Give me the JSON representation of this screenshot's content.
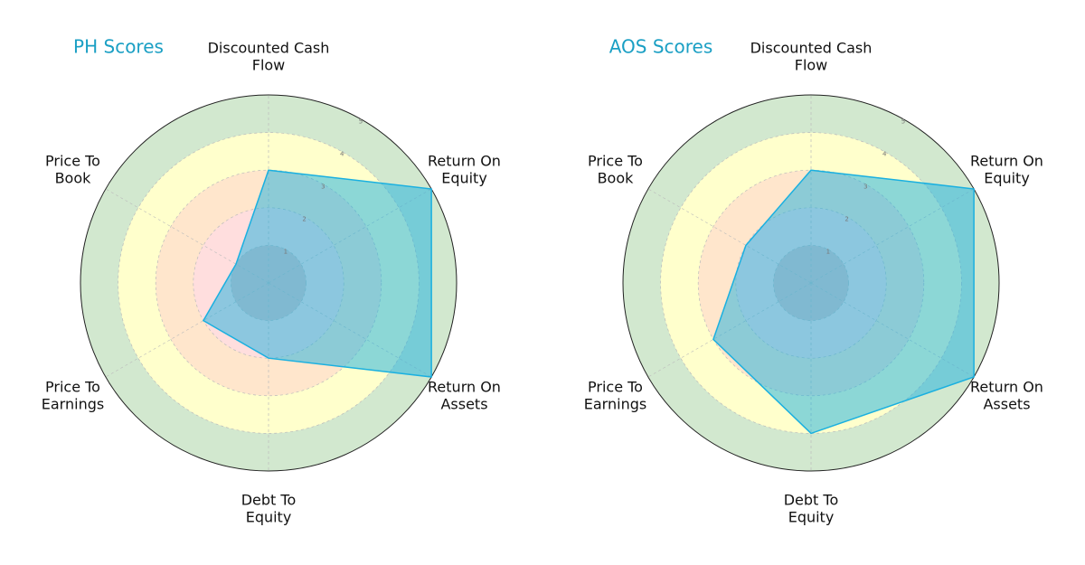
{
  "chart_data": [
    {
      "type": "radar",
      "title": "PH Scores",
      "categories": [
        "Discounted Cash Flow",
        "Return On Equity",
        "Return On Assets",
        "Debt To Equity",
        "Price To Earnings",
        "Price To Book"
      ],
      "values": [
        3,
        5,
        5,
        2,
        2,
        1
      ],
      "color": "#1ab0e0",
      "ylim": [
        0,
        5
      ],
      "yticks": [
        1,
        2,
        3,
        4,
        5
      ],
      "band_colors": [
        "#e6c3c3",
        "#ffdede",
        "#ffe6cc",
        "#ffffcc",
        "#d2e8cf"
      ],
      "grid": true
    },
    {
      "type": "radar",
      "title": "AOS Scores",
      "categories": [
        "Discounted Cash Flow",
        "Return On Equity",
        "Return On Assets",
        "Debt To Equity",
        "Price To Earnings",
        "Price To Book"
      ],
      "values": [
        3,
        5,
        5,
        4,
        3,
        2
      ],
      "color": "#1ab0e0",
      "ylim": [
        0,
        5
      ],
      "yticks": [
        1,
        2,
        3,
        4,
        5
      ],
      "band_colors": [
        "#e6c3c3",
        "#ffdede",
        "#ffe6cc",
        "#ffffcc",
        "#d2e8cf"
      ],
      "grid": true
    }
  ]
}
